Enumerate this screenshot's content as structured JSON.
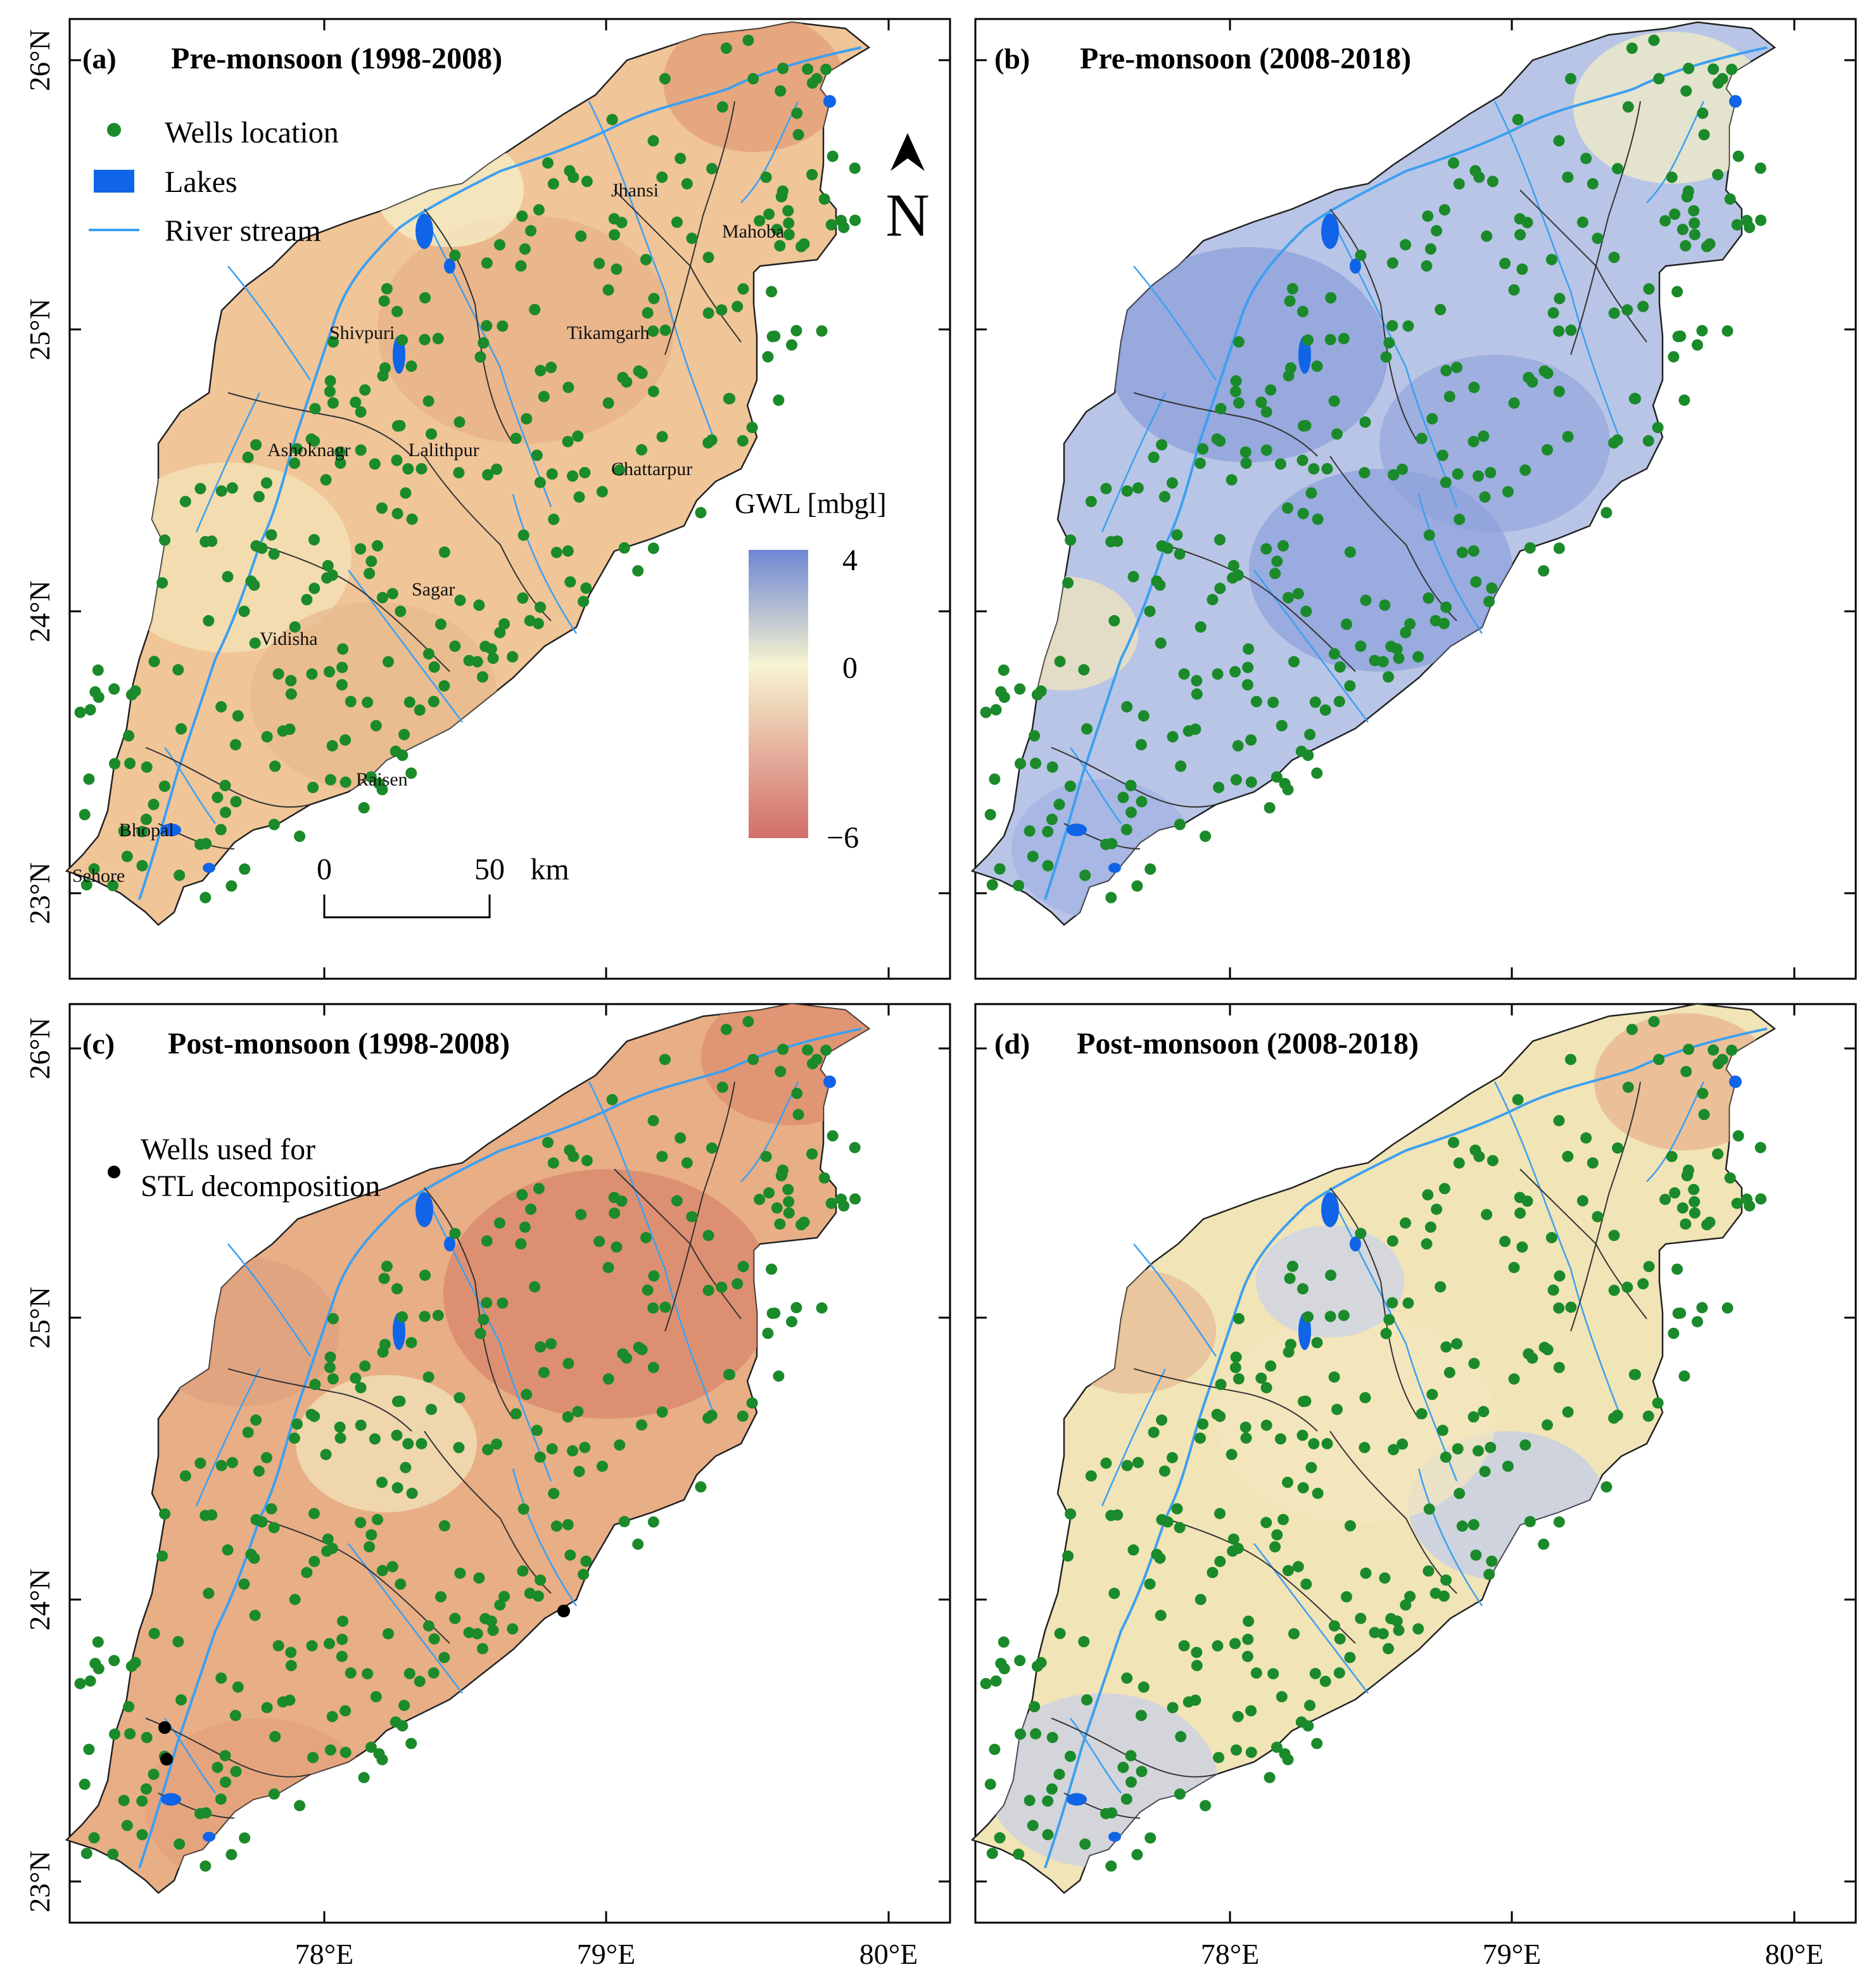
{
  "panels": [
    {
      "tag": "(a)",
      "title": "Pre-monsoon (1998-2008)",
      "theme": "red"
    },
    {
      "tag": "(b)",
      "title": "Pre-monsoon (2008-2018)",
      "theme": "blue"
    },
    {
      "tag": "(c)",
      "title": "Post-monsoon (1998-2008)",
      "theme": "deepred"
    },
    {
      "tag": "(d)",
      "title": "Post-monsoon (2008-2018)",
      "theme": "mixed"
    }
  ],
  "axes": {
    "lat_labels": [
      "23°N",
      "24°N",
      "25°N",
      "26°N"
    ],
    "lon_labels": [
      "78°E",
      "79°E",
      "80°E"
    ]
  },
  "legend": {
    "wells": "Wells location",
    "lakes": "Lakes",
    "river": "River stream",
    "stl_wells": [
      "Wells used for",
      "STL decomposition"
    ]
  },
  "north_arrow": "N",
  "colorbar": {
    "title": "GWL [mbgl]",
    "ticks": [
      "4",
      "0",
      "−6"
    ],
    "range": [
      -6,
      4
    ],
    "colors": {
      "high": "#6e86d3",
      "mid": "#f7f4d0",
      "low": "#d26e6a"
    }
  },
  "scalebar": {
    "start": "0",
    "end": "50",
    "unit": "km"
  },
  "districts": [
    "Jhansi",
    "Mahoba",
    "Shivpuri",
    "Tikamgarh",
    "Ashoknagr",
    "Lalithpur",
    "Chattarpur",
    "Sagar",
    "Vidisha",
    "Raisen",
    "Bhopal",
    "Sehore"
  ],
  "colors": {
    "wells": "#1a8a2a",
    "lakes": "#1064e8",
    "river": "#3ca0f0",
    "stl_wells": "#000000"
  }
}
